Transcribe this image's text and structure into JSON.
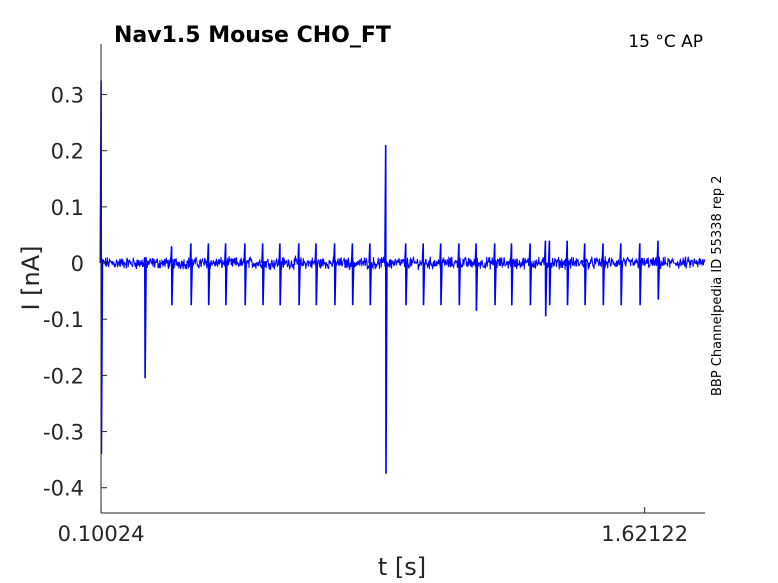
{
  "chart_data": {
    "type": "line",
    "title": "Nav1.5  Mouse  CHO_FT",
    "condition": "15 °C  AP",
    "side_label": "BBP Channelpedia ID 55338 rep 2",
    "xlabel": "t [s]",
    "ylabel": "I [nA]",
    "x_ticks": [
      {
        "value": 0.10024,
        "label": "0.10024"
      },
      {
        "value": 1.62122,
        "label": "1.62122"
      }
    ],
    "y_ticks": [
      {
        "value": 0.3,
        "label": "0.3"
      },
      {
        "value": 0.2,
        "label": "0.2"
      },
      {
        "value": 0.1,
        "label": "0.1"
      },
      {
        "value": 0,
        "label": "0"
      },
      {
        "value": -0.1,
        "label": "-0.1"
      },
      {
        "value": -0.2,
        "label": "-0.2"
      },
      {
        "value": -0.3,
        "label": "-0.3"
      },
      {
        "value": -0.4,
        "label": "-0.4"
      }
    ],
    "xlim": [
      0.1,
      1.79
    ],
    "ylim": [
      -0.445,
      0.39
    ],
    "grid": false,
    "series_color": "#0000ff",
    "baseline_noise": 0.008,
    "events": [
      {
        "t": 0.1003,
        "peak": 0.325,
        "trough": -0.34
      },
      {
        "t": 0.2225,
        "peak": 0.01,
        "trough": -0.205
      },
      {
        "t": 0.2975,
        "peak": 0.03,
        "trough": -0.075
      },
      {
        "t": 0.3515,
        "peak": 0.035,
        "trough": -0.075
      },
      {
        "t": 0.4005,
        "peak": 0.035,
        "trough": -0.075
      },
      {
        "t": 0.4485,
        "peak": 0.035,
        "trough": -0.075
      },
      {
        "t": 0.5025,
        "peak": 0.035,
        "trough": -0.075
      },
      {
        "t": 0.5525,
        "peak": 0.035,
        "trough": -0.075
      },
      {
        "t": 0.6005,
        "peak": 0.035,
        "trough": -0.075
      },
      {
        "t": 0.6535,
        "peak": 0.035,
        "trough": -0.075
      },
      {
        "t": 0.7015,
        "peak": 0.035,
        "trough": -0.075
      },
      {
        "t": 0.7535,
        "peak": 0.035,
        "trough": -0.075
      },
      {
        "t": 0.8035,
        "peak": 0.035,
        "trough": -0.075
      },
      {
        "t": 0.8525,
        "peak": 0.035,
        "trough": -0.075
      },
      {
        "t": 0.8965,
        "peak": 0.21,
        "trough": -0.375
      },
      {
        "t": 0.9525,
        "peak": 0.035,
        "trough": -0.075
      },
      {
        "t": 1.0015,
        "peak": 0.035,
        "trough": -0.075
      },
      {
        "t": 1.0505,
        "peak": 0.035,
        "trough": -0.075
      },
      {
        "t": 1.1015,
        "peak": 0.035,
        "trough": -0.075
      },
      {
        "t": 1.1495,
        "peak": 0.035,
        "trough": -0.085
      },
      {
        "t": 1.2015,
        "peak": 0.035,
        "trough": -0.075
      },
      {
        "t": 1.2485,
        "peak": 0.035,
        "trough": -0.075
      },
      {
        "t": 1.3005,
        "peak": 0.035,
        "trough": -0.075
      },
      {
        "t": 1.3435,
        "peak": 0.04,
        "trough": -0.095
      },
      {
        "t": 1.3545,
        "peak": 0.04,
        "trough": -0.075
      },
      {
        "t": 1.4045,
        "peak": 0.04,
        "trough": -0.075
      },
      {
        "t": 1.4535,
        "peak": 0.035,
        "trough": -0.075
      },
      {
        "t": 1.5045,
        "peak": 0.035,
        "trough": -0.075
      },
      {
        "t": 1.5545,
        "peak": 0.035,
        "trough": -0.075
      },
      {
        "t": 1.6075,
        "peak": 0.035,
        "trough": -0.075
      },
      {
        "t": 1.6585,
        "peak": 0.04,
        "trough": -0.065
      }
    ]
  }
}
